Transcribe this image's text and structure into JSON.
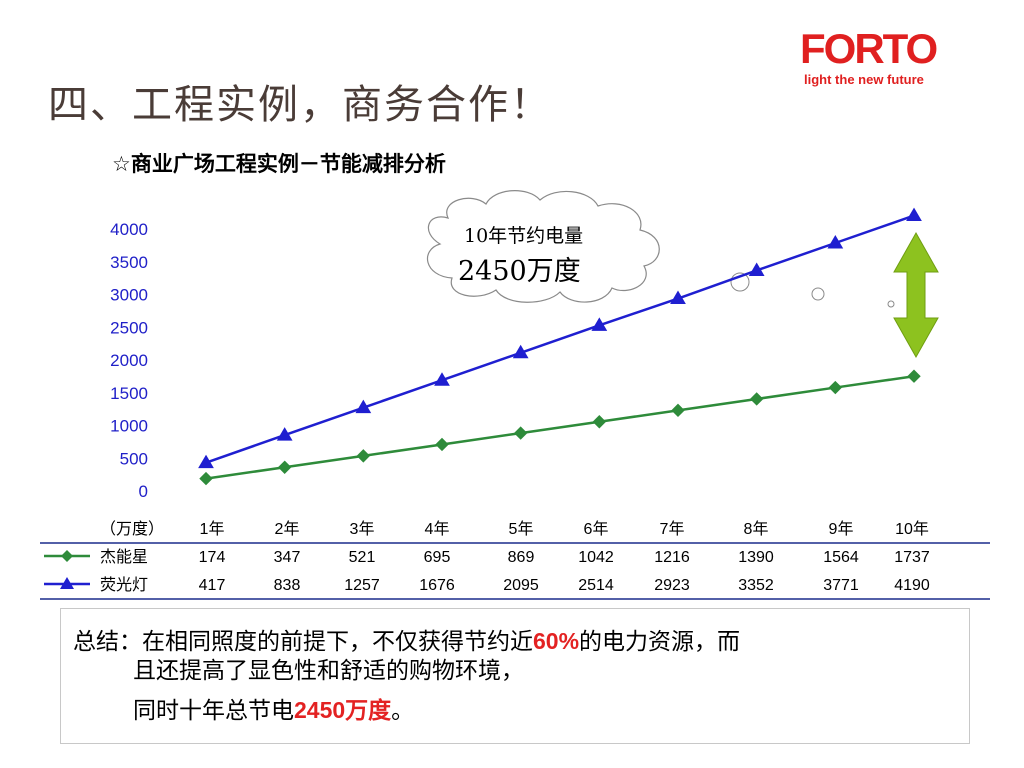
{
  "page": {
    "title": "四、工程实例，商务合作！",
    "subtitle": "☆商业广场工程实例－节能减排分析"
  },
  "logo": {
    "name": "FORTO",
    "tagline": "light the new future",
    "color": "#e02020"
  },
  "callout": {
    "line1": "10年节约电量",
    "line2": "2450万度"
  },
  "chart_data": {
    "type": "line",
    "categories": [
      "1年",
      "2年",
      "3年",
      "4年",
      "5年",
      "6年",
      "7年",
      "8年",
      "9年",
      "10年"
    ],
    "unit_label": "（万度）",
    "yticks": [
      "4000",
      "3500",
      "3000",
      "2500",
      "2000",
      "1500",
      "1000",
      "500",
      "0"
    ],
    "ylim": [
      0,
      4000
    ],
    "grid": false,
    "legend": "table-below",
    "series": [
      {
        "name": "杰能星",
        "color": "#2e8b3a",
        "marker": "diamond",
        "values": [
          174,
          347,
          521,
          695,
          869,
          1042,
          1216,
          1390,
          1564,
          1737
        ]
      },
      {
        "name": "荧光灯",
        "color": "#1f1fd0",
        "marker": "triangle",
        "values": [
          417,
          838,
          1257,
          1676,
          2095,
          2514,
          2923,
          3352,
          3771,
          4190
        ]
      }
    ],
    "table": {
      "rows": [
        {
          "label": "杰能星",
          "values": [
            "174",
            "347",
            "521",
            "695",
            "869",
            "1042",
            "1216",
            "1390",
            "1564",
            "1737"
          ]
        },
        {
          "label": "荧光灯",
          "values": [
            "417",
            "838",
            "1257",
            "1676",
            "2095",
            "2514",
            "2923",
            "3352",
            "3771",
            "4190"
          ]
        }
      ]
    }
  },
  "summary": {
    "prefix": "总结：在相同照度的前提下，不仅获得节约近",
    "highlight1": "60%",
    "after1": "的电力资源，而",
    "line2": "且还提高了显色性和舒适的购物环境，",
    "line3_prefix": "同时十年总节电",
    "highlight2": "2450万度",
    "line3_suffix": "。"
  }
}
